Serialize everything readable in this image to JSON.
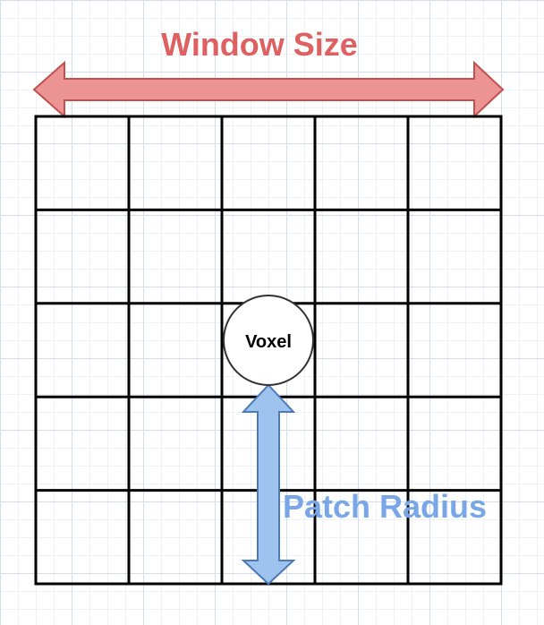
{
  "labels": {
    "window_size": "Window Size",
    "voxel": "Voxel",
    "patch_radius": "Patch Radius"
  },
  "grid": {
    "rows": 5,
    "columns": 5
  },
  "colors": {
    "window_size_arrow_fill": "#ec9494",
    "window_size_arrow_stroke": "#c0504d",
    "window_size_text": "#de6060",
    "patch_radius_arrow_fill": "#9ec3ee",
    "patch_radius_arrow_stroke": "#4a7ab7",
    "patch_radius_text": "#78a6e6",
    "grid_lines": "#000000",
    "voxel_fill": "#ffffff",
    "voxel_stroke": "#333333"
  }
}
